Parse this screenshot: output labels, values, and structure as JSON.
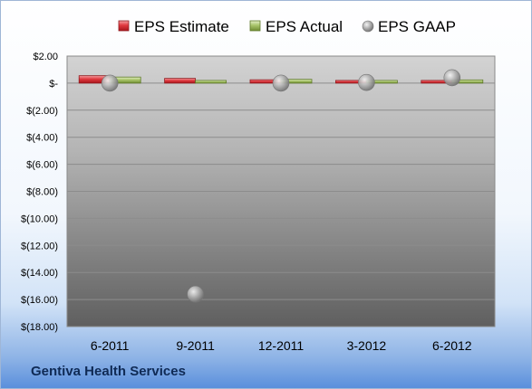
{
  "company_name": "Gentiva Health Services",
  "colors": {
    "estimate": "#d9242b",
    "actual": "#9bbb59",
    "gaap": "#a6a6a6"
  },
  "chart_data": {
    "type": "bar",
    "categories": [
      "6-2011",
      "9-2011",
      "12-2011",
      "3-2012",
      "6-2012"
    ],
    "y_tick_labels": [
      "$2.00",
      "$-",
      "$(2.00)",
      "$(4.00)",
      "$(6.00)",
      "$(8.00)",
      "$(10.00)",
      "$(12.00)",
      "$(14.00)",
      "$(16.00)",
      "$(18.00)"
    ],
    "ylim": [
      -18,
      2
    ],
    "grid": true,
    "legend_position": "top",
    "series": [
      {
        "name": "EPS Estimate",
        "type": "bar",
        "values": [
          0.55,
          0.35,
          0.25,
          0.15,
          0.18
        ]
      },
      {
        "name": "EPS Actual",
        "type": "bar",
        "values": [
          0.45,
          0.17,
          0.28,
          0.16,
          0.24
        ]
      },
      {
        "name": "EPS GAAP",
        "type": "scatter",
        "values": [
          0.0,
          -15.6,
          0.0,
          0.05,
          0.4
        ]
      }
    ]
  }
}
